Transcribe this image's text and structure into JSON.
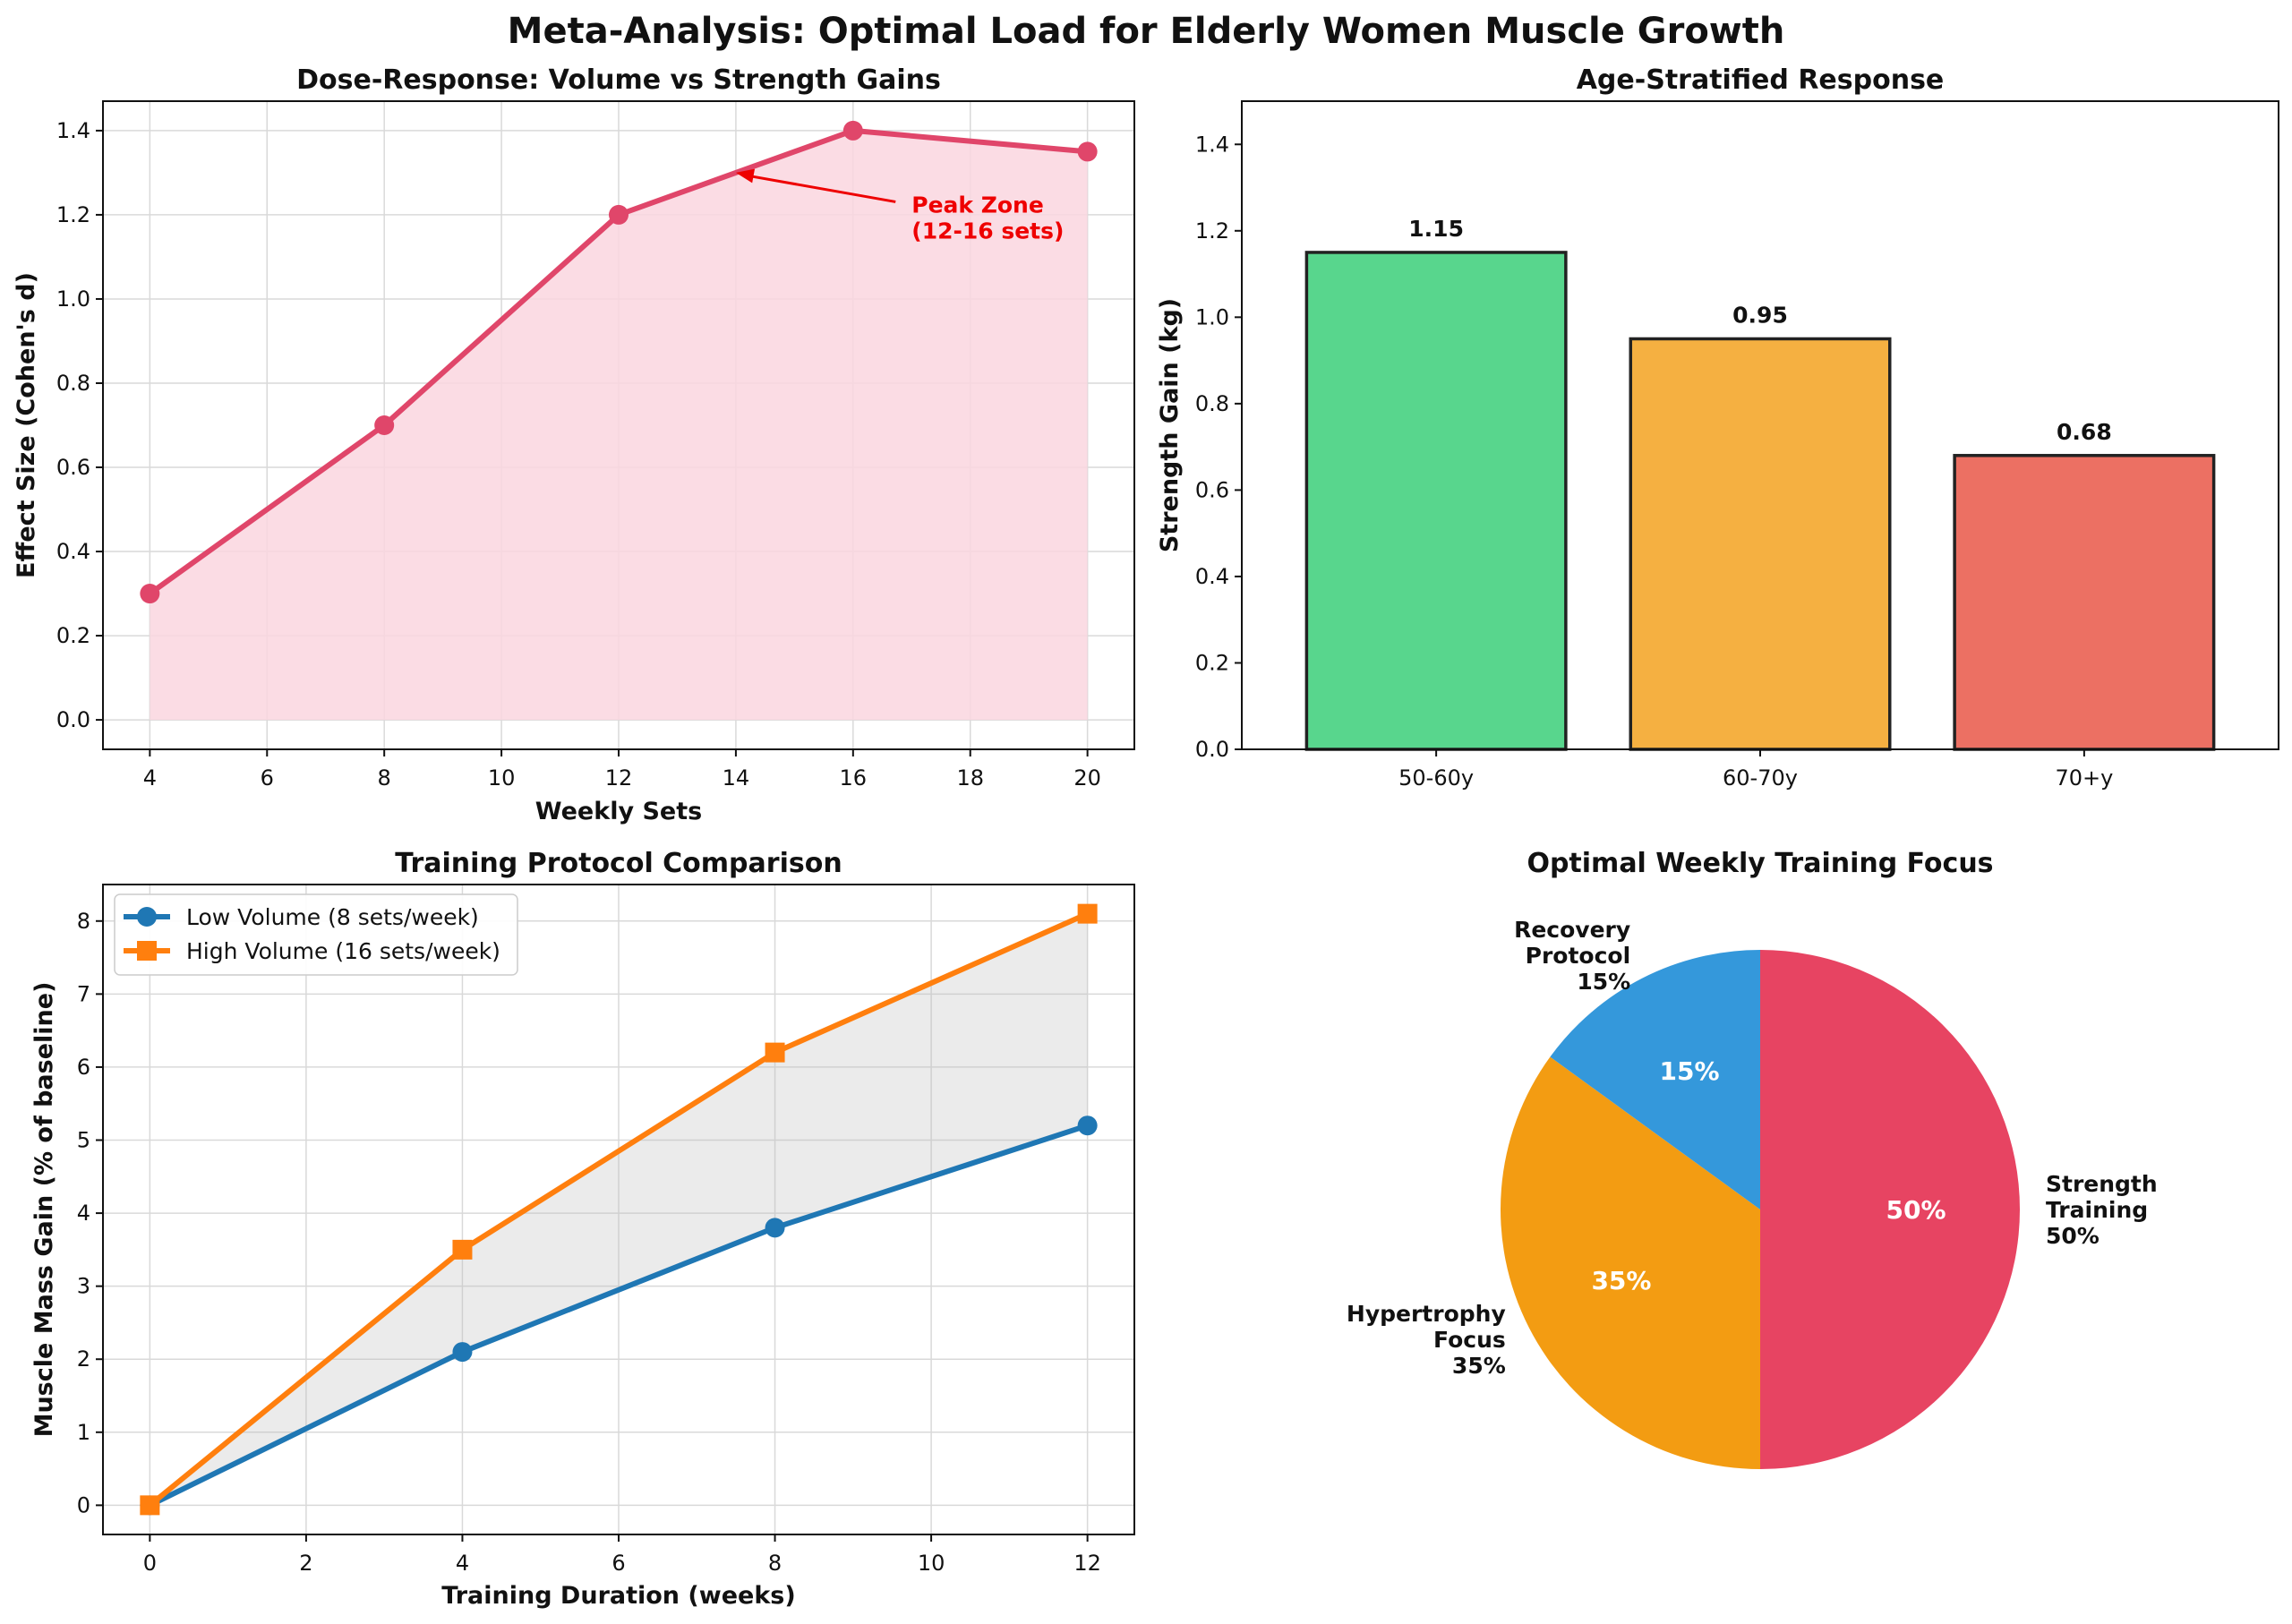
{
  "figure": {
    "title": "Meta-Analysis: Optimal Load for Elderly Women Muscle Growth"
  },
  "chart_data": [
    {
      "type": "line",
      "title": "Dose-Response: Volume vs Strength Gains",
      "xlabel": "Weekly Sets",
      "ylabel": "Effect Size (Cohen's d)",
      "x": [
        4,
        8,
        12,
        16,
        20
      ],
      "y": [
        0.3,
        0.7,
        1.2,
        1.4,
        1.35
      ],
      "xlim": [
        3.2,
        20.8
      ],
      "ylim": [
        -0.07,
        1.47
      ],
      "xticks": [
        4,
        6,
        8,
        10,
        12,
        14,
        16,
        18,
        20
      ],
      "yticks": [
        0.0,
        0.2,
        0.4,
        0.6,
        0.8,
        1.0,
        1.2,
        1.4
      ],
      "fill_under": true,
      "grid": true,
      "color": "#e0466a",
      "fill_color": "#fad6df",
      "annotation": {
        "text_lines": [
          "Peak Zone",
          "(12-16 sets)"
        ],
        "point": [
          14,
          1.3
        ],
        "text_at": [
          17,
          1.15
        ],
        "color": "#ee0000"
      }
    },
    {
      "type": "bar",
      "title": "Age-Stratified Response",
      "xlabel": "",
      "ylabel": "Strength Gain (kg)",
      "categories": [
        "50-60y",
        "60-70y",
        "70+y"
      ],
      "values": [
        1.15,
        0.95,
        0.68
      ],
      "value_labels": [
        "1.15",
        "0.95",
        "0.68"
      ],
      "colors": [
        "#58d68d",
        "#f5b041",
        "#ec7063"
      ],
      "ylim": [
        0,
        1.5
      ],
      "yticks": [
        0.0,
        0.2,
        0.4,
        0.6,
        0.8,
        1.0,
        1.2,
        1.4
      ],
      "grid": false
    },
    {
      "type": "line",
      "title": "Training Protocol Comparison",
      "xlabel": "Training Duration (weeks)",
      "ylabel": "Muscle Mass Gain (% of baseline)",
      "x": [
        0,
        4,
        8,
        12
      ],
      "xlim": [
        -0.6,
        12.6
      ],
      "ylim": [
        -0.4,
        8.5
      ],
      "xticks": [
        0,
        2,
        4,
        6,
        8,
        10,
        12
      ],
      "yticks": [
        0,
        1,
        2,
        3,
        4,
        5,
        6,
        7,
        8
      ],
      "grid": true,
      "legend_position": "upper-left",
      "fill_between": true,
      "series": [
        {
          "name": "Low Volume (8 sets/week)",
          "values": [
            0,
            2.1,
            3.8,
            5.2
          ],
          "color": "#1f77b4",
          "marker": "circle"
        },
        {
          "name": "High Volume (16 sets/week)",
          "values": [
            0,
            3.5,
            6.2,
            8.1
          ],
          "color": "#ff7f0e",
          "marker": "square"
        }
      ]
    },
    {
      "type": "pie",
      "title": "Optimal Weekly Training Focus",
      "slices": [
        {
          "label_lines": [
            "Strength",
            "Training",
            "50%"
          ],
          "pct_label": "50%",
          "value": 50,
          "color": "#e74462"
        },
        {
          "label_lines": [
            "Hypertrophy",
            "Focus",
            "35%"
          ],
          "pct_label": "35%",
          "value": 35,
          "color": "#f39c12"
        },
        {
          "label_lines": [
            "Recovery",
            "Protocol",
            "15%"
          ],
          "pct_label": "15%",
          "value": 15,
          "color": "#3498db"
        }
      ],
      "start_angle_deg": 90,
      "direction": "clockwise"
    }
  ]
}
